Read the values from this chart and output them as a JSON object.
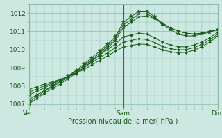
{
  "title": "",
  "xlabel": "Pression niveau de la mer( hPa )",
  "ylim": [
    1006.8,
    1012.5
  ],
  "xlim": [
    0,
    48
  ],
  "yticks": [
    1007,
    1008,
    1009,
    1010,
    1011,
    1012
  ],
  "xtick_positions": [
    0,
    24,
    48
  ],
  "xtick_labels": [
    "Ven",
    "Sam",
    "Dim"
  ],
  "bg_color": "#cce8e0",
  "grid_color": "#88bbb0",
  "line_color": "#1a5c1a",
  "vline_color": "#2d6e2d",
  "series": [
    {
      "x": [
        0,
        2,
        4,
        6,
        8,
        10,
        12,
        14,
        16,
        18,
        20,
        22,
        24,
        26,
        28,
        30,
        32,
        34,
        36,
        38,
        40,
        42,
        44,
        46,
        48
      ],
      "y": [
        1007.0,
        1007.3,
        1007.6,
        1007.85,
        1008.1,
        1008.4,
        1008.7,
        1009.0,
        1009.35,
        1009.7,
        1010.1,
        1010.5,
        1011.2,
        1011.5,
        1011.8,
        1011.85,
        1011.7,
        1011.4,
        1011.2,
        1011.0,
        1010.9,
        1010.85,
        1010.9,
        1011.0,
        1011.1
      ]
    },
    {
      "x": [
        0,
        2,
        4,
        6,
        8,
        10,
        12,
        14,
        16,
        18,
        20,
        22,
        24,
        26,
        28,
        30,
        32,
        34,
        36,
        38,
        40,
        42,
        44,
        46,
        48
      ],
      "y": [
        1007.1,
        1007.4,
        1007.7,
        1007.95,
        1008.2,
        1008.5,
        1008.8,
        1009.1,
        1009.45,
        1009.8,
        1010.2,
        1010.6,
        1011.35,
        1011.65,
        1011.95,
        1011.95,
        1011.75,
        1011.45,
        1011.2,
        1011.0,
        1010.9,
        1010.85,
        1010.9,
        1011.0,
        1011.1
      ]
    },
    {
      "x": [
        0,
        2,
        4,
        6,
        8,
        10,
        12,
        14,
        16,
        18,
        20,
        22,
        24,
        26,
        28,
        30,
        32,
        34,
        36,
        38,
        40,
        42,
        44,
        46,
        48
      ],
      "y": [
        1007.25,
        1007.5,
        1007.75,
        1008.0,
        1008.25,
        1008.55,
        1008.85,
        1009.2,
        1009.55,
        1009.9,
        1010.3,
        1010.7,
        1011.5,
        1011.8,
        1012.1,
        1012.1,
        1011.8,
        1011.4,
        1011.1,
        1010.85,
        1010.75,
        1010.75,
        1010.85,
        1010.95,
        1011.1
      ]
    },
    {
      "x": [
        0,
        2,
        4,
        6,
        8,
        10,
        12,
        14,
        16,
        18,
        20,
        22,
        24,
        26,
        28,
        30,
        32,
        34,
        36,
        38,
        40,
        42,
        44,
        46,
        48
      ],
      "y": [
        1007.5,
        1007.7,
        1007.9,
        1008.1,
        1008.3,
        1008.55,
        1008.8,
        1009.1,
        1009.4,
        1009.7,
        1010.0,
        1010.3,
        1010.7,
        1010.8,
        1010.9,
        1010.85,
        1010.65,
        1010.4,
        1010.25,
        1010.15,
        1010.15,
        1010.25,
        1010.4,
        1010.65,
        1010.95
      ]
    },
    {
      "x": [
        0,
        2,
        4,
        6,
        8,
        10,
        12,
        14,
        16,
        18,
        20,
        22,
        24,
        26,
        28,
        30,
        32,
        34,
        36,
        38,
        40,
        42,
        44,
        46,
        48
      ],
      "y": [
        1007.65,
        1007.82,
        1008.0,
        1008.15,
        1008.32,
        1008.52,
        1008.72,
        1009.0,
        1009.28,
        1009.55,
        1009.82,
        1010.1,
        1010.4,
        1010.5,
        1010.6,
        1010.55,
        1010.38,
        1010.18,
        1010.05,
        1009.98,
        1010.0,
        1010.1,
        1010.28,
        1010.52,
        1010.85
      ]
    },
    {
      "x": [
        0,
        2,
        4,
        6,
        8,
        10,
        12,
        14,
        16,
        18,
        20,
        22,
        24,
        26,
        28,
        30,
        32,
        34,
        36,
        38,
        40,
        42,
        44,
        46,
        48
      ],
      "y": [
        1007.8,
        1007.95,
        1008.1,
        1008.22,
        1008.36,
        1008.52,
        1008.68,
        1008.9,
        1009.15,
        1009.4,
        1009.65,
        1009.9,
        1010.15,
        1010.22,
        1010.3,
        1010.28,
        1010.15,
        1009.98,
        1009.88,
        1009.82,
        1009.85,
        1009.96,
        1010.15,
        1010.4,
        1010.75
      ]
    }
  ]
}
